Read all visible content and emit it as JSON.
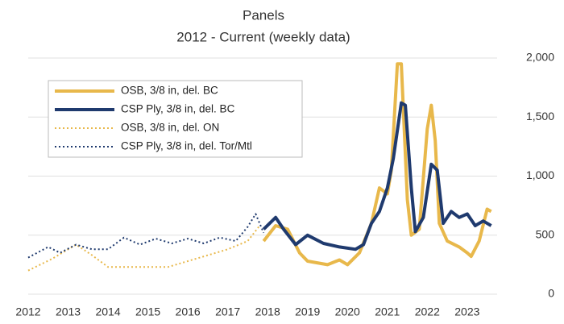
{
  "chart_data": {
    "type": "line",
    "title": "Panels",
    "subtitle": "2012 - Current (weekly data)",
    "xlim": [
      2012,
      2023.75
    ],
    "xticks": [
      2012,
      2013,
      2014,
      2015,
      2016,
      2017,
      2018,
      2019,
      2020,
      2021,
      2022,
      2023
    ],
    "ylim": [
      0,
      2000
    ],
    "yticks": [
      0,
      500,
      {
        "value": 1000,
        "label": "1,000"
      },
      {
        "value": 1500,
        "label": "1,500"
      },
      {
        "value": 2000,
        "label": "2,000"
      }
    ],
    "grid": true,
    "legend": "upper left",
    "series": [
      {
        "name": "OSB, 3/8 in, del. BC",
        "color": "#e8b84b",
        "style": "solid",
        "x": [
          2017.9,
          2018.2,
          2018.5,
          2018.8,
          2019.0,
          2019.5,
          2019.8,
          2020.0,
          2020.3,
          2020.6,
          2020.8,
          2021.0,
          2021.1,
          2021.25,
          2021.35,
          2021.5,
          2021.6,
          2021.8,
          2022.0,
          2022.1,
          2022.2,
          2022.3,
          2022.5,
          2022.8,
          2023.0,
          2023.1,
          2023.3,
          2023.5,
          2023.6
        ],
        "values": [
          450,
          580,
          550,
          350,
          280,
          250,
          290,
          250,
          350,
          600,
          900,
          850,
          1050,
          1950,
          1950,
          800,
          500,
          550,
          1400,
          1600,
          1300,
          600,
          450,
          400,
          350,
          320,
          450,
          720,
          700
        ]
      },
      {
        "name": "CSP Ply, 3/8 in, del. BC",
        "color": "#1f3a6e",
        "style": "solid",
        "x": [
          2017.9,
          2018.2,
          2018.4,
          2018.7,
          2019.0,
          2019.4,
          2019.8,
          2020.2,
          2020.4,
          2020.6,
          2020.8,
          2021.0,
          2021.15,
          2021.35,
          2021.45,
          2021.6,
          2021.7,
          2021.9,
          2022.1,
          2022.25,
          2022.4,
          2022.6,
          2022.8,
          2023.0,
          2023.2,
          2023.4,
          2023.6
        ],
        "values": [
          550,
          650,
          550,
          420,
          500,
          430,
          400,
          380,
          420,
          600,
          700,
          900,
          1150,
          1620,
          1600,
          900,
          530,
          650,
          1100,
          1050,
          600,
          700,
          650,
          680,
          580,
          620,
          580
        ]
      },
      {
        "name": "OSB, 3/8 in, del. ON",
        "color": "#e8b84b",
        "style": "dotted",
        "x": [
          2012.0,
          2012.6,
          2013.2,
          2013.6,
          2014.0,
          2015.0,
          2015.5,
          2016.0,
          2016.5,
          2017.0,
          2017.5,
          2017.8
        ],
        "values": [
          200,
          300,
          420,
          330,
          230,
          230,
          230,
          280,
          330,
          380,
          450,
          580
        ]
      },
      {
        "name": "CSP Ply, 3/8 in, del. Tor/Mtl",
        "color": "#1f3a6e",
        "style": "dotted",
        "x": [
          2012.0,
          2012.5,
          2012.8,
          2013.2,
          2013.6,
          2014.0,
          2014.4,
          2014.8,
          2015.2,
          2015.6,
          2016.0,
          2016.4,
          2016.8,
          2017.2,
          2017.5,
          2017.7,
          2017.9
        ],
        "values": [
          310,
          400,
          350,
          420,
          380,
          380,
          480,
          420,
          470,
          430,
          470,
          430,
          480,
          450,
          570,
          680,
          520
        ]
      }
    ]
  }
}
